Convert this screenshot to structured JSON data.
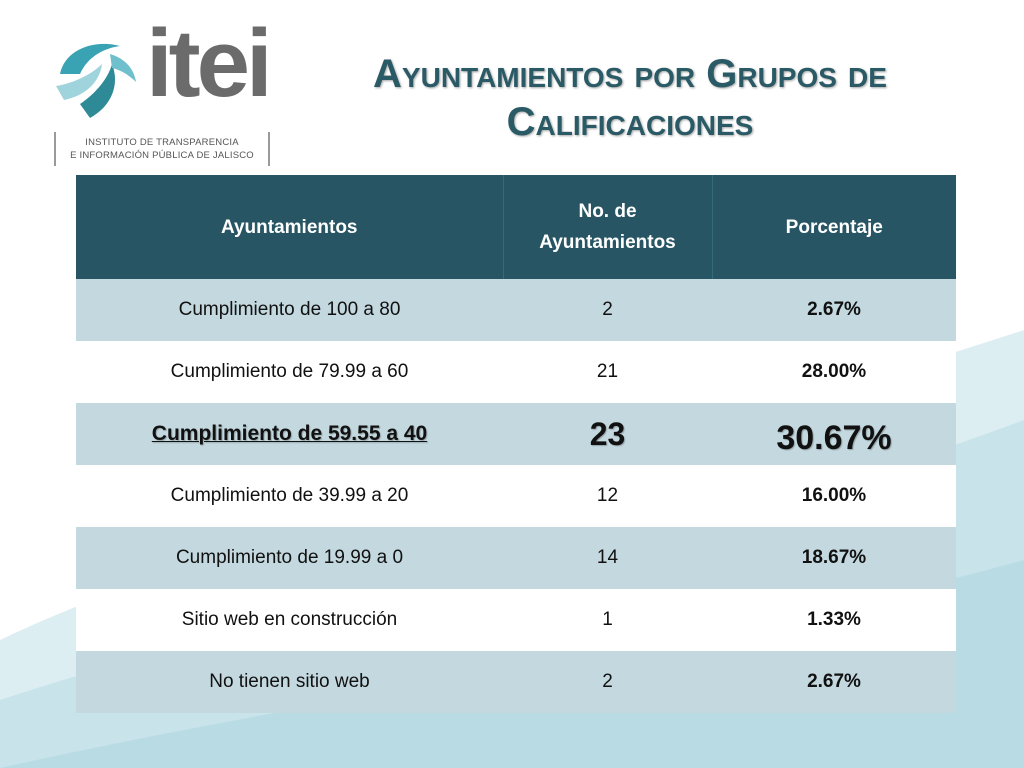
{
  "logo": {
    "name": "itei",
    "subtitle_line1": "INSTITUTO DE TRANSPARENCIA",
    "subtitle_line2": "E INFORMACIÓN PÚBLICA DE JALISCO"
  },
  "title": {
    "line1": "Ayuntamientos por Grupos de",
    "line2": "Calificaciones"
  },
  "table": {
    "headers": {
      "col1": "Ayuntamientos",
      "col2_line1": "No. de",
      "col2_line2": "Ayuntamientos",
      "col3": "Porcentaje"
    },
    "rows": [
      {
        "name": "Cumplimiento de 100 a 80",
        "count": "2",
        "percent": "2.67%"
      },
      {
        "name": "Cumplimiento de 79.99 a 60",
        "count": "21",
        "percent": "28.00%"
      },
      {
        "name": "Cumplimiento de 59.55 a 40",
        "count": "23",
        "percent": "30.67%",
        "highlighted": true
      },
      {
        "name": "Cumplimiento de 39.99 a 20",
        "count": "12",
        "percent": "16.00%"
      },
      {
        "name": "Cumplimiento de 19.99 a 0",
        "count": "14",
        "percent": "18.67%"
      },
      {
        "name": "Sitio web en construcción",
        "count": "1",
        "percent": "1.33%"
      },
      {
        "name": "No tienen sitio web",
        "count": "2",
        "percent": "2.67%"
      }
    ]
  },
  "colors": {
    "header_bg": "#275563",
    "row_alt_bg": "#c3d8df",
    "title_color": "#2a5a66",
    "logo_teal": "#3aa3b3"
  }
}
